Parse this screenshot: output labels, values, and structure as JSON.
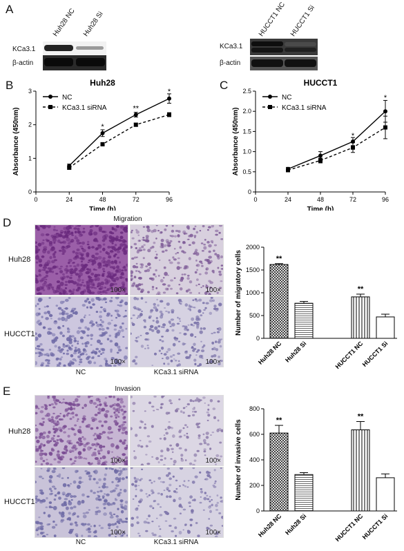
{
  "panels": {
    "A": {
      "letter": "A",
      "left": {
        "lanes": [
          "Huh28 NC",
          "Huh28 Si"
        ],
        "rows": [
          "KCa3.1",
          "β-actin"
        ]
      },
      "right": {
        "lanes": [
          "HUCCT1 NC",
          "HUCCT1 Si"
        ],
        "rows": [
          "KCa3.1",
          "β-actin"
        ]
      }
    },
    "B": {
      "letter": "B"
    },
    "C": {
      "letter": "C"
    },
    "D": {
      "letter": "D",
      "title": "Migration",
      "rows": [
        "Huh28",
        "HUCCT1"
      ],
      "cols": [
        "NC",
        "KCa3.1 siRNA"
      ],
      "mag": "100×"
    },
    "E": {
      "letter": "E",
      "title": "Invasion",
      "rows": [
        "Huh28",
        "HUCCT1"
      ],
      "cols": [
        "NC",
        "KCa3.1 siRNA"
      ],
      "mag": "100×"
    }
  },
  "chart_data": [
    {
      "id": "B",
      "type": "line",
      "title": "Huh28",
      "xlabel": "Time (h)",
      "ylabel": "Absorbance (450nm)",
      "x": [
        24,
        48,
        72,
        96
      ],
      "xticks": [
        "0",
        "24",
        "48",
        "72",
        "96"
      ],
      "yticks": [
        "0",
        "1",
        "2",
        "3"
      ],
      "xlim": [
        0,
        96
      ],
      "ylim": [
        0,
        3
      ],
      "legend_position": "top-left",
      "series": [
        {
          "name": "NC",
          "values": [
            0.78,
            1.75,
            2.3,
            2.78
          ],
          "err": [
            0.05,
            0.1,
            0.07,
            0.14
          ]
        },
        {
          "name": "KCa3.1 siRNA",
          "values": [
            0.72,
            1.42,
            2.0,
            2.3
          ],
          "err": [
            0.04,
            0.05,
            0.05,
            0.06
          ]
        }
      ],
      "annotations": [
        {
          "x": 48,
          "y": 1.95,
          "text": "*"
        },
        {
          "x": 72,
          "y": 2.5,
          "text": "**"
        },
        {
          "x": 96,
          "y": 3.0,
          "text": "*"
        }
      ]
    },
    {
      "id": "C",
      "type": "line",
      "title": "HUCCT1",
      "xlabel": "Time (h)",
      "ylabel": "Absorbance (450nm)",
      "x": [
        24,
        48,
        72,
        96
      ],
      "xticks": [
        "0",
        "24",
        "48",
        "72",
        "96"
      ],
      "yticks": [
        "0",
        "0.5",
        "1.0",
        "1.5",
        "2.0",
        "2.5"
      ],
      "xlim": [
        0,
        96
      ],
      "ylim": [
        0,
        2.5
      ],
      "legend_position": "top-left",
      "series": [
        {
          "name": "NC",
          "values": [
            0.57,
            0.9,
            1.25,
            2.0
          ],
          "err": [
            0.04,
            0.1,
            0.1,
            0.27
          ]
        },
        {
          "name": "KCa3.1 siRNA",
          "values": [
            0.54,
            0.78,
            1.1,
            1.6
          ],
          "err": [
            0.04,
            0.06,
            0.12,
            0.28
          ]
        }
      ],
      "annotations": [
        {
          "x": 72,
          "y": 1.4,
          "text": "*"
        },
        {
          "x": 96,
          "y": 2.35,
          "text": "*"
        }
      ]
    },
    {
      "id": "D",
      "type": "bar",
      "ylabel": "Number of migratory cells",
      "categories": [
        "Huh28 NC",
        "Huh28 Si",
        "HUCCT1 NC",
        "HUCCT1 Si"
      ],
      "values": [
        1620,
        770,
        910,
        470
      ],
      "err": [
        20,
        40,
        60,
        60
      ],
      "yticks": [
        "0",
        "500",
        "1000",
        "1500",
        "2000"
      ],
      "ylim": [
        0,
        2000
      ],
      "annotations": [
        {
          "category": "Huh28 NC",
          "text": "**"
        },
        {
          "category": "HUCCT1 NC",
          "text": "**"
        }
      ]
    },
    {
      "id": "E",
      "type": "bar",
      "ylabel": "Number of invasive cells",
      "categories": [
        "Huh28 NC",
        "Huh28 Si",
        "HUCCT1 NC",
        "HUCCT1 Si"
      ],
      "values": [
        610,
        285,
        635,
        260
      ],
      "err": [
        60,
        15,
        65,
        30
      ],
      "yticks": [
        "0",
        "200",
        "400",
        "600",
        "800"
      ],
      "ylim": [
        0,
        800
      ],
      "annotations": [
        {
          "category": "Huh28 NC",
          "text": "**"
        },
        {
          "category": "HUCCT1 NC",
          "text": "**"
        }
      ]
    }
  ]
}
